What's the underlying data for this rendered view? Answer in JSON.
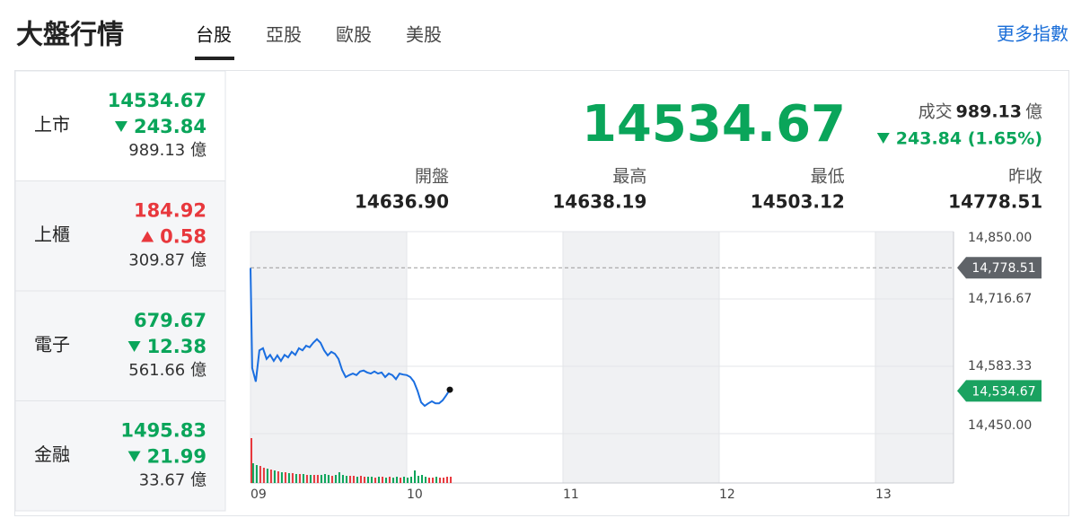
{
  "header": {
    "title": "大盤行情",
    "tabs": [
      "台股",
      "亞股",
      "歐股",
      "美股"
    ],
    "active_tab": 0,
    "more": "更多指數"
  },
  "indices": [
    {
      "name": "上市",
      "value": "14534.67",
      "change": "243.84",
      "direction": "down",
      "volume": "989.13 億"
    },
    {
      "name": "上櫃",
      "value": "184.92",
      "change": "0.58",
      "direction": "up",
      "volume": "309.87 億"
    },
    {
      "name": "電子",
      "value": "679.67",
      "change": "12.38",
      "direction": "down",
      "volume": "561.66 億"
    },
    {
      "name": "金融",
      "value": "1495.83",
      "change": "21.99",
      "direction": "down",
      "volume": "33.67 億"
    }
  ],
  "selected_index": 0,
  "summary": {
    "value": "14534.67",
    "volume_label": "成交",
    "volume": "989.13",
    "volume_unit": "億",
    "change": "243.84 (1.65%)",
    "direction": "down",
    "stats": [
      {
        "label": "開盤",
        "value": "14636.90"
      },
      {
        "label": "最高",
        "value": "14638.19"
      },
      {
        "label": "最低",
        "value": "14503.12"
      },
      {
        "label": "昨收",
        "value": "14778.51"
      }
    ]
  },
  "chart_data": {
    "type": "line",
    "color": "#1a6ee0",
    "x": [
      9,
      9.011,
      9.034,
      9.057,
      9.08,
      9.103,
      9.126,
      9.149,
      9.172,
      9.195,
      9.218,
      9.241,
      9.264,
      9.287,
      9.31,
      9.333,
      9.356,
      9.379,
      9.402,
      9.425,
      9.448,
      9.471,
      9.494,
      9.517,
      9.54,
      9.563,
      9.586,
      9.609,
      9.632,
      9.655,
      9.678,
      9.701,
      9.724,
      9.747,
      9.77,
      9.793,
      9.816,
      9.839,
      9.862,
      9.885,
      9.908,
      9.931,
      9.954,
      9.977,
      10.0,
      10.023,
      10.046,
      10.069,
      10.092,
      10.115,
      10.138,
      10.161,
      10.184,
      10.207,
      10.23,
      10.253,
      10.276
    ],
    "values": [
      14778,
      14580,
      14553,
      14615,
      14619,
      14598,
      14606,
      14594,
      14605,
      14594,
      14606,
      14601,
      14612,
      14606,
      14619,
      14615,
      14624,
      14621,
      14630,
      14637,
      14630,
      14615,
      14605,
      14612,
      14608,
      14598,
      14576,
      14562,
      14566,
      14569,
      14566,
      14573,
      14575,
      14571,
      14569,
      14573,
      14569,
      14571,
      14562,
      14569,
      14566,
      14558,
      14569,
      14567,
      14566,
      14562,
      14553,
      14535,
      14512,
      14505,
      14510,
      14514,
      14510,
      14510,
      14516,
      14526,
      14537
    ],
    "volume": [
      50,
      22,
      20,
      19,
      17,
      16,
      15,
      14,
      13,
      12,
      12,
      11,
      11,
      10,
      10,
      10,
      9,
      9,
      9,
      9,
      9,
      10,
      9,
      8,
      9,
      12,
      9,
      8,
      8,
      8,
      7,
      8,
      7,
      7,
      7,
      6,
      7,
      7,
      6,
      7,
      6,
      7,
      6,
      7,
      6,
      7,
      14,
      8,
      9,
      7,
      6,
      6,
      7,
      6,
      6,
      7,
      7
    ],
    "xlim": [
      9,
      13.5
    ],
    "xticks": [
      {
        "value": 9,
        "label": "09"
      },
      {
        "value": 10,
        "label": "10"
      },
      {
        "value": 11,
        "label": "11"
      },
      {
        "value": 12,
        "label": "12"
      },
      {
        "value": 13,
        "label": "13"
      }
    ],
    "ylim": [
      14450,
      14850
    ],
    "yticks": [
      {
        "value": 14450,
        "label": "14,450.00"
      },
      {
        "value": 14583.33,
        "label": "14,583.33"
      },
      {
        "value": 14716.67,
        "label": "14,716.67"
      },
      {
        "value": 14850,
        "label": "14,850.00"
      }
    ],
    "reference": {
      "value": 14778.51,
      "label": "14,778.51"
    },
    "last": {
      "value": 14534.67,
      "label": "14,534.67"
    },
    "grid": true
  }
}
